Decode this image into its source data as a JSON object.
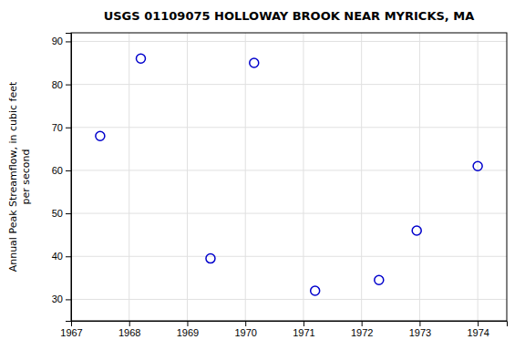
{
  "chart_data": {
    "type": "scatter",
    "title": "USGS 01109075 HOLLOWAY BROOK NEAR MYRICKS, MA",
    "ylabel": [
      "Annual Peak Streamflow, in cubic feet",
      "per second"
    ],
    "x": [
      1967.5,
      1968.2,
      1969.4,
      1970.15,
      1971.2,
      1972.3,
      1972.95,
      1974.0
    ],
    "values": [
      68,
      86,
      39.5,
      85,
      32,
      34.5,
      46,
      61
    ],
    "xlim": [
      1967,
      1974.5
    ],
    "ylim": [
      25,
      92
    ],
    "xticks": [
      1967,
      1968,
      1969,
      1970,
      1971,
      1972,
      1973,
      1974
    ],
    "yticks": [
      30,
      40,
      50,
      60,
      70,
      80,
      90
    ],
    "color": "#0000cc",
    "marker": "circle",
    "grid": true
  }
}
